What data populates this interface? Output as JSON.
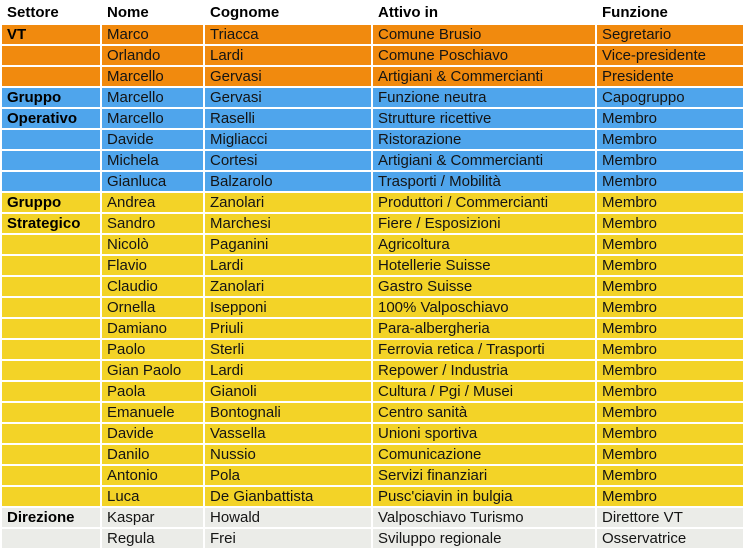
{
  "page": {
    "background": "#e8ded9",
    "cell_gap_color": "#ffffff"
  },
  "colors": {
    "orange": "#f18a0e",
    "blue": "#4fa5ec",
    "yellow": "#f3d327",
    "gray": "#ebece8",
    "header_bg": "#ffffff",
    "text": "#141414"
  },
  "table": {
    "column_keys": [
      "settore",
      "nome",
      "cognome",
      "attivo_in",
      "funzione"
    ],
    "columns": [
      "Settore",
      "Nome",
      "Cognome",
      "Attivo in",
      "Funzione"
    ],
    "rows": [
      {
        "color": "orange",
        "section_bold": true,
        "cells": [
          "VT",
          "Marco",
          "Triacca",
          "Comune Brusio",
          "Segretario"
        ]
      },
      {
        "color": "orange",
        "section_bold": false,
        "cells": [
          "",
          "Orlando",
          "Lardi",
          "Comune Poschiavo",
          "Vice-presidente"
        ]
      },
      {
        "color": "orange",
        "section_bold": false,
        "cells": [
          "",
          "Marcello",
          "Gervasi",
          "Artigiani & Commercianti",
          "Presidente"
        ]
      },
      {
        "color": "blue",
        "section_bold": true,
        "cells": [
          "Gruppo",
          "Marcello",
          "Gervasi",
          "Funzione neutra",
          "Capogruppo"
        ]
      },
      {
        "color": "blue",
        "section_bold": true,
        "cells": [
          "Operativo",
          "Marcello",
          "Raselli",
          "Strutture ricettive",
          "Membro"
        ]
      },
      {
        "color": "blue",
        "section_bold": false,
        "cells": [
          "",
          "Davide",
          "Migliacci",
          "Ristorazione",
          "Membro"
        ]
      },
      {
        "color": "blue",
        "section_bold": false,
        "cells": [
          "",
          "Michela",
          "Cortesi",
          "Artigiani & Commercianti",
          "Membro"
        ]
      },
      {
        "color": "blue",
        "section_bold": false,
        "cells": [
          "",
          "Gianluca",
          "Balzarolo",
          "Trasporti / Mobilità",
          "Membro"
        ]
      },
      {
        "color": "yellow",
        "section_bold": true,
        "cells": [
          "Gruppo",
          "Andrea",
          "Zanolari",
          "Produttori / Commercianti",
          "Membro"
        ]
      },
      {
        "color": "yellow",
        "section_bold": true,
        "cells": [
          "Strategico",
          "Sandro",
          "Marchesi",
          "Fiere / Esposizioni",
          "Membro"
        ]
      },
      {
        "color": "yellow",
        "section_bold": false,
        "cells": [
          "",
          "Nicolò",
          "Paganini",
          "Agricoltura",
          "Membro"
        ]
      },
      {
        "color": "yellow",
        "section_bold": false,
        "cells": [
          "",
          "Flavio",
          "Lardi",
          "Hotellerie Suisse",
          "Membro"
        ]
      },
      {
        "color": "yellow",
        "section_bold": false,
        "cells": [
          "",
          "Claudio",
          "Zanolari",
          "Gastro Suisse",
          "Membro"
        ]
      },
      {
        "color": "yellow",
        "section_bold": false,
        "cells": [
          "",
          "Ornella",
          "Isepponi",
          "100% Valposchiavo",
          "Membro"
        ]
      },
      {
        "color": "yellow",
        "section_bold": false,
        "cells": [
          "",
          "Damiano",
          "Priuli",
          "Para-albergheria",
          "Membro"
        ]
      },
      {
        "color": "yellow",
        "section_bold": false,
        "cells": [
          "",
          "Paolo",
          "Sterli",
          "Ferrovia retica / Trasporti",
          "Membro"
        ]
      },
      {
        "color": "yellow",
        "section_bold": false,
        "cells": [
          "",
          "Gian Paolo",
          "Lardi",
          "Repower / Industria",
          "Membro"
        ]
      },
      {
        "color": "yellow",
        "section_bold": false,
        "cells": [
          "",
          "Paola",
          "Gianoli",
          "Cultura / Pgi / Musei",
          "Membro"
        ]
      },
      {
        "color": "yellow",
        "section_bold": false,
        "cells": [
          "",
          "Emanuele",
          "Bontognali",
          "Centro sanità",
          "Membro"
        ]
      },
      {
        "color": "yellow",
        "section_bold": false,
        "cells": [
          "",
          "Davide",
          "Vassella",
          "Unioni sportiva",
          "Membro"
        ]
      },
      {
        "color": "yellow",
        "section_bold": false,
        "cells": [
          "",
          "Danilo",
          "Nussio",
          "Comunicazione",
          "Membro"
        ]
      },
      {
        "color": "yellow",
        "section_bold": false,
        "cells": [
          "",
          "Antonio",
          "Pola",
          "Servizi finanziari",
          "Membro"
        ]
      },
      {
        "color": "yellow",
        "section_bold": false,
        "cells": [
          "",
          "Luca",
          "De Gianbattista",
          "Pusc'ciavin in bulgia",
          "Membro"
        ]
      },
      {
        "color": "gray",
        "section_bold": true,
        "cells": [
          "Direzione",
          "Kaspar",
          "Howald",
          "Valposchiavo Turismo",
          "Direttore VT"
        ]
      },
      {
        "color": "gray",
        "section_bold": false,
        "cells": [
          "",
          "Regula",
          "Frei",
          "Sviluppo regionale",
          "Osservatrice"
        ]
      }
    ]
  }
}
